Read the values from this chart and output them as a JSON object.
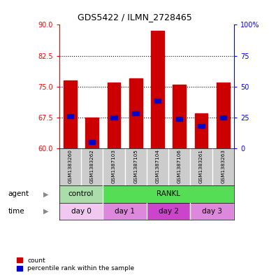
{
  "title": "GDS5422 / ILMN_2728465",
  "samples": [
    "GSM1383260",
    "GSM1383262",
    "GSM1387103",
    "GSM1387105",
    "GSM1387104",
    "GSM1387106",
    "GSM1383261",
    "GSM1383263"
  ],
  "bar_bottom": 60,
  "bar_tops": [
    76.5,
    67.5,
    76.0,
    77.0,
    88.5,
    75.5,
    68.5,
    76.0
  ],
  "percentile_values": [
    67.8,
    61.5,
    67.5,
    68.5,
    71.5,
    67.2,
    65.5,
    67.5
  ],
  "ylim_left": [
    60,
    90
  ],
  "ylim_right": [
    0,
    100
  ],
  "yticks_left": [
    60,
    67.5,
    75,
    82.5,
    90
  ],
  "yticks_right": [
    0,
    25,
    50,
    75,
    100
  ],
  "ytick_labels_right": [
    "0",
    "25",
    "50",
    "75",
    "100%"
  ],
  "hlines": [
    67.5,
    75.0,
    82.5
  ],
  "bar_color": "#cc0000",
  "percentile_color": "#0000cc",
  "agent_control_color": "#aaddaa",
  "agent_rankl_color": "#55dd55",
  "time_day0_color": "#f0c8f0",
  "time_day1_color": "#dd88dd",
  "time_day2_color": "#cc44cc",
  "time_day3_color": "#dd88dd",
  "gsm_bg_color": "#cccccc",
  "legend_count_color": "#cc0000",
  "legend_percentile_color": "#0000cc",
  "background_color": "#ffffff"
}
